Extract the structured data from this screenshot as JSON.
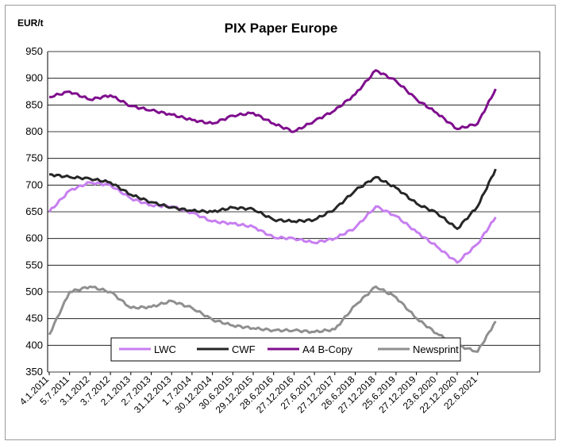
{
  "chart_data": {
    "type": "line",
    "title": "PIX Paper Europe",
    "ylabel": "EUR/t",
    "xlabel": "",
    "ylim": [
      350,
      950
    ],
    "yticks": [
      350,
      400,
      450,
      500,
      550,
      600,
      650,
      700,
      750,
      800,
      850,
      900,
      950
    ],
    "grid": "horizontal",
    "legend_position": "bottom-center",
    "x_tick_labels": [
      "4.1.2011",
      "5.7.2011",
      "3.1.2012",
      "3.7.2012",
      "2.1.2013",
      "2.7.2013",
      "31.12.2013",
      "1.7.2014",
      "30.12.2014",
      "30.6.2015",
      "29.12.2015",
      "28.6.2016",
      "27.12.2016",
      "27.6.2017",
      "27.12.2017",
      "26.6.2018",
      "27.12.2018",
      "25.6.2019",
      "27.12.2019",
      "23.6.2020",
      "22.12.2020",
      "22.6.2021"
    ],
    "x": [
      "2011-01-04",
      "2011-07-05",
      "2012-01-03",
      "2012-07-03",
      "2013-01-02",
      "2013-07-02",
      "2013-12-31",
      "2014-07-01",
      "2014-12-30",
      "2015-06-30",
      "2015-12-29",
      "2016-06-28",
      "2016-12-27",
      "2017-06-27",
      "2017-12-27",
      "2018-06-26",
      "2018-12-27",
      "2019-06-25",
      "2019-12-27",
      "2020-06-23",
      "2020-12-22",
      "2021-06-22",
      "2021-11-30"
    ],
    "series": [
      {
        "name": "LWC",
        "color": "#c77ef0",
        "values": [
          650,
          690,
          705,
          700,
          675,
          662,
          660,
          648,
          632,
          628,
          622,
          602,
          600,
          592,
          600,
          620,
          660,
          642,
          612,
          585,
          555,
          590,
          640
        ]
      },
      {
        "name": "CWF",
        "color": "#262626",
        "values": [
          720,
          715,
          712,
          705,
          682,
          668,
          658,
          652,
          650,
          658,
          655,
          635,
          632,
          635,
          655,
          690,
          715,
          695,
          665,
          648,
          618,
          660,
          730
        ]
      },
      {
        "name": "A4 B-Copy",
        "color": "#7f0e8d",
        "values": [
          865,
          875,
          860,
          868,
          848,
          840,
          832,
          822,
          815,
          830,
          835,
          815,
          800,
          820,
          840,
          870,
          915,
          895,
          860,
          835,
          805,
          815,
          880
        ]
      },
      {
        "name": "Newsprint",
        "color": "#8f8f8f",
        "values": [
          420,
          500,
          510,
          500,
          470,
          472,
          483,
          470,
          448,
          437,
          432,
          428,
          428,
          425,
          430,
          475,
          510,
          490,
          450,
          422,
          400,
          388,
          445
        ]
      }
    ]
  }
}
